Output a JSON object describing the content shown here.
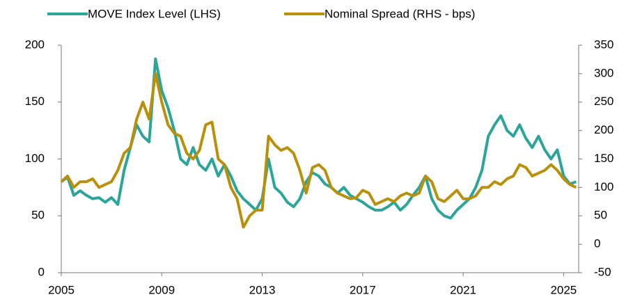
{
  "chart_data": {
    "type": "line",
    "x": [
      2005,
      2005.25,
      2005.5,
      2005.75,
      2006,
      2006.25,
      2006.5,
      2006.75,
      2007,
      2007.25,
      2007.5,
      2007.75,
      2008,
      2008.25,
      2008.5,
      2008.75,
      2009,
      2009.25,
      2009.5,
      2009.75,
      2010,
      2010.25,
      2010.5,
      2010.75,
      2011,
      2011.25,
      2011.5,
      2011.75,
      2012,
      2012.25,
      2012.5,
      2012.75,
      2013,
      2013.25,
      2013.5,
      2013.75,
      2014,
      2014.25,
      2014.5,
      2014.75,
      2015,
      2015.25,
      2015.5,
      2015.75,
      2016,
      2016.25,
      2016.5,
      2016.75,
      2017,
      2017.25,
      2017.5,
      2017.75,
      2018,
      2018.25,
      2018.5,
      2018.75,
      2019,
      2019.25,
      2019.5,
      2019.75,
      2020,
      2020.25,
      2020.5,
      2020.75,
      2021,
      2021.25,
      2021.5,
      2021.75,
      2022,
      2022.25,
      2022.5,
      2022.75,
      2023,
      2023.25,
      2023.5,
      2023.75,
      2024,
      2024.25,
      2024.5,
      2024.75,
      2025,
      2025.25,
      2025.5
    ],
    "series": [
      {
        "name": "MOVE Index Level (LHS)",
        "color": "#2ba59a",
        "axis": "y",
        "values": [
          80,
          84,
          68,
          72,
          68,
          65,
          66,
          62,
          66,
          60,
          90,
          110,
          130,
          120,
          115,
          188,
          160,
          145,
          125,
          100,
          95,
          110,
          95,
          90,
          100,
          85,
          95,
          85,
          72,
          65,
          60,
          55,
          65,
          100,
          75,
          70,
          62,
          58,
          65,
          80,
          88,
          85,
          78,
          75,
          70,
          75,
          68,
          65,
          62,
          58,
          55,
          55,
          58,
          62,
          55,
          60,
          68,
          75,
          85,
          65,
          55,
          50,
          48,
          55,
          60,
          65,
          75,
          90,
          120,
          130,
          138,
          125,
          120,
          130,
          118,
          110,
          120,
          108,
          100,
          108,
          85,
          78,
          80
        ]
      },
      {
        "name": "Nominal Spread (RHS - bps)",
        "color": "#b8900a",
        "axis": "y2",
        "values": [
          110,
          120,
          100,
          110,
          110,
          115,
          100,
          105,
          110,
          130,
          160,
          170,
          220,
          250,
          220,
          300,
          250,
          210,
          195,
          190,
          160,
          150,
          165,
          210,
          215,
          150,
          140,
          100,
          80,
          30,
          50,
          60,
          60,
          190,
          175,
          165,
          170,
          160,
          130,
          90,
          135,
          140,
          130,
          100,
          90,
          85,
          80,
          82,
          95,
          90,
          70,
          75,
          80,
          75,
          85,
          90,
          85,
          90,
          120,
          110,
          80,
          75,
          85,
          95,
          80,
          80,
          85,
          100,
          100,
          110,
          105,
          115,
          120,
          140,
          135,
          120,
          125,
          130,
          140,
          130,
          115,
          105,
          100
        ]
      }
    ],
    "xlim": [
      2005,
      2025.6
    ],
    "xticks": [
      2005,
      2009,
      2013,
      2017,
      2021,
      2025
    ],
    "ylim": [
      0,
      200
    ],
    "yticks": [
      0,
      50,
      100,
      150,
      200
    ],
    "y2lim": [
      -50,
      350
    ],
    "y2ticks": [
      -50,
      0,
      50,
      100,
      150,
      200,
      250,
      300,
      350
    ],
    "grid": false
  }
}
